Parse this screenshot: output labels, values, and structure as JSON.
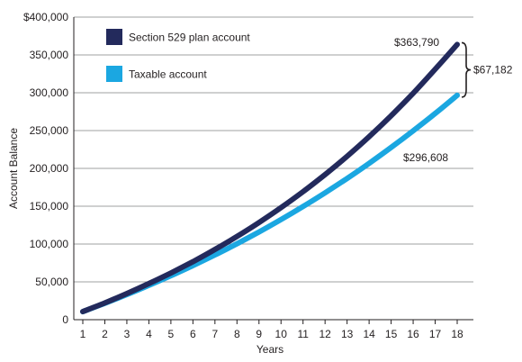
{
  "chart_data": {
    "type": "line",
    "title": "",
    "xlabel": "Years",
    "ylabel": "Account Balance",
    "x": [
      1,
      2,
      3,
      4,
      5,
      6,
      7,
      8,
      9,
      10,
      11,
      12,
      13,
      14,
      15,
      16,
      17,
      18
    ],
    "x_tick_labels": [
      "1",
      "2",
      "3",
      "4",
      "5",
      "6",
      "7",
      "8",
      "9",
      "10",
      "11",
      "12",
      "13",
      "14",
      "15",
      "16",
      "17",
      "18"
    ],
    "ylim": [
      0,
      400000
    ],
    "y_ticks": [
      0,
      50000,
      100000,
      150000,
      200000,
      250000,
      300000,
      350000,
      400000
    ],
    "y_tick_labels": [
      "0",
      "50,000",
      "100,000",
      "150,000",
      "200,000",
      "250,000",
      "300,000",
      "350,000",
      "$400,000"
    ],
    "grid": "horizontal",
    "legend_position": "top-left",
    "series": [
      {
        "name": "Section 529 plan account",
        "color": "#232a5c",
        "values": [
          10700,
          22200,
          34500,
          47700,
          61700,
          76700,
          92800,
          110000,
          128400,
          148100,
          169200,
          191800,
          216000,
          241900,
          269600,
          299300,
          331100,
          363790
        ],
        "end_label": "$363,790"
      },
      {
        "name": "Taxable account",
        "color": "#1ba7e1",
        "values": [
          10600,
          21700,
          33200,
          45400,
          58100,
          71500,
          85600,
          100400,
          116000,
          132400,
          149600,
          167700,
          186700,
          206700,
          227700,
          249800,
          272600,
          296608
        ],
        "end_label": "$296,608"
      }
    ],
    "annotations": {
      "difference_label": "$67,182",
      "difference_between": [
        296608,
        363790
      ]
    }
  }
}
